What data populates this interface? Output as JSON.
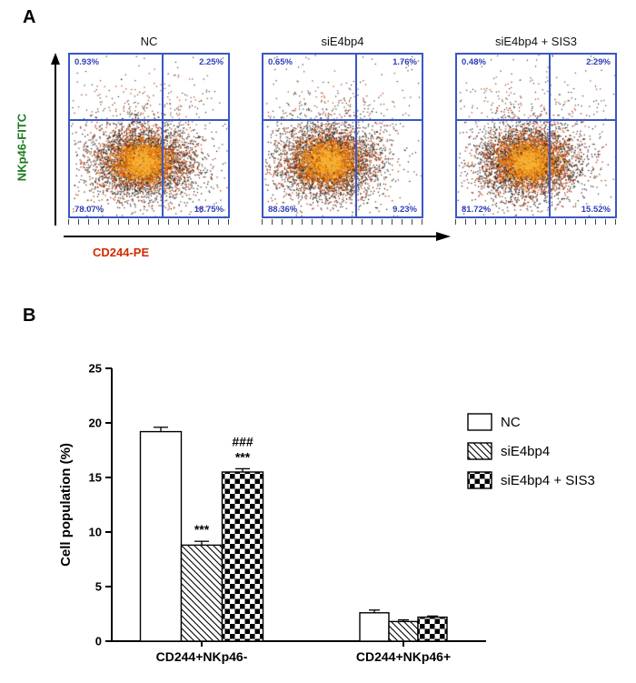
{
  "panel_a": {
    "label": "A",
    "y_axis_label": "NKp46-FITC",
    "x_axis_label": "CD244-PE",
    "colors": {
      "quadrant_line": "#3a57c4",
      "percent_text": "#2f3fb8",
      "y_label": "#1f7a1f",
      "x_label": "#d42a00"
    },
    "plots": [
      {
        "title": "NC",
        "ul": "0.93%",
        "ur": "2.25%",
        "ll": "78.07%",
        "lr": "18.75%"
      },
      {
        "title": "siE4bp4",
        "ul": "0.65%",
        "ur": "1.76%",
        "ll": "88.36%",
        "lr": "9.23%"
      },
      {
        "title": "siE4bp4 + SIS3",
        "ul": "0.48%",
        "ur": "2.29%",
        "ll": "81.72%",
        "lr": "15.52%"
      }
    ]
  },
  "panel_b": {
    "label": "B"
  },
  "chart_data": {
    "type": "bar",
    "title": "",
    "xlabel": "",
    "ylabel": "Cell population (%)",
    "ylim": [
      0,
      25
    ],
    "yticks": [
      0,
      5,
      10,
      15,
      20,
      25
    ],
    "grid": false,
    "legend_position": "right",
    "categories": [
      "CD244+NKp46-",
      "CD244+NKp46+"
    ],
    "series": [
      {
        "name": "NC",
        "fill": "white",
        "values": [
          19.2,
          2.6
        ],
        "errors": [
          0.4,
          0.25
        ]
      },
      {
        "name": "siE4bp4",
        "fill": "diagonal-hatch",
        "values": [
          8.8,
          1.8
        ],
        "errors": [
          0.35,
          0.15
        ]
      },
      {
        "name": "siE4bp4 + SIS3",
        "fill": "checker",
        "values": [
          15.5,
          2.2
        ],
        "errors": [
          0.3,
          0.1
        ]
      }
    ],
    "annotations": [
      {
        "group": 0,
        "series": 1,
        "text": "***"
      },
      {
        "group": 0,
        "series": 2,
        "text": "***"
      },
      {
        "group": 0,
        "series": 2,
        "text": "###"
      }
    ]
  }
}
